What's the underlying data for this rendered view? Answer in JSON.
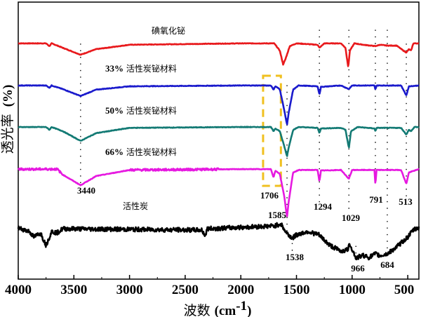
{
  "chart_data": {
    "type": "line",
    "xlabel": "波数 (cm-1)",
    "xlabel_main": "波数",
    "xlabel_unit": "(cm",
    "xlabel_sup": "-1",
    "xlabel_close": ")",
    "ylabel": "透光率 (%)",
    "ylabel_main": "透光率",
    "ylabel_unit": "(%)",
    "xlim": [
      4000,
      400
    ],
    "x_reversed": true,
    "x_ticks": [
      4000,
      3500,
      3000,
      2500,
      2000,
      1500,
      1000,
      500
    ],
    "y_ticks": [],
    "ylim": [
      0,
      100
    ],
    "grid": false,
    "series": [
      {
        "name": "碘氧化铋",
        "label_parts": [
          "",
          "碘氧化铋"
        ],
        "color": "#e8191c",
        "points": [
          [
            4000,
            85.1
          ],
          [
            3750,
            85.1
          ],
          [
            3720,
            84.1
          ],
          [
            3700,
            85.1
          ],
          [
            3600,
            83.5
          ],
          [
            3440,
            81.0
          ],
          [
            3300,
            83.0
          ],
          [
            3000,
            84.6
          ],
          [
            2000,
            85.1
          ],
          [
            1700,
            85.1
          ],
          [
            1650,
            82.5
          ],
          [
            1620,
            77.5
          ],
          [
            1600,
            79.3
          ],
          [
            1560,
            84.1
          ],
          [
            1500,
            85.1
          ],
          [
            1310,
            84.6
          ],
          [
            1294,
            83.5
          ],
          [
            1250,
            85.1
          ],
          [
            1100,
            85.1
          ],
          [
            1060,
            83.5
          ],
          [
            1035,
            76.5
          ],
          [
            1020,
            82.5
          ],
          [
            980,
            85.1
          ],
          [
            900,
            84.6
          ],
          [
            791,
            84.1
          ],
          [
            750,
            84.6
          ],
          [
            684,
            84.3
          ],
          [
            600,
            84.3
          ],
          [
            540,
            82.5
          ],
          [
            513,
            81.8
          ],
          [
            490,
            83.0
          ],
          [
            470,
            82.5
          ],
          [
            450,
            85.1
          ],
          [
            400,
            85.1
          ]
        ]
      },
      {
        "name": "33% 活性炭铋材料",
        "label_parts": [
          "33%",
          " 活性炭铋材料"
        ],
        "color": "#1a1acc",
        "points": [
          [
            4000,
            69.9
          ],
          [
            3750,
            69.9
          ],
          [
            3720,
            69.1
          ],
          [
            3700,
            69.9
          ],
          [
            3600,
            68.6
          ],
          [
            3440,
            66.1
          ],
          [
            3300,
            68.4
          ],
          [
            3000,
            69.6
          ],
          [
            2000,
            69.9
          ],
          [
            1730,
            69.9
          ],
          [
            1706,
            68.4
          ],
          [
            1690,
            69.6
          ],
          [
            1650,
            68.6
          ],
          [
            1610,
            61.0
          ],
          [
            1585,
            55.7
          ],
          [
            1570,
            60.0
          ],
          [
            1530,
            68.4
          ],
          [
            1480,
            69.9
          ],
          [
            1310,
            69.6
          ],
          [
            1294,
            66.6
          ],
          [
            1280,
            69.4
          ],
          [
            1100,
            69.9
          ],
          [
            1029,
            68.6
          ],
          [
            1000,
            69.9
          ],
          [
            800,
            69.9
          ],
          [
            791,
            68.4
          ],
          [
            780,
            69.9
          ],
          [
            560,
            69.9
          ],
          [
            513,
            66.3
          ],
          [
            490,
            69.6
          ],
          [
            400,
            69.9
          ]
        ]
      },
      {
        "name": "50% 活性炭铋材料",
        "label_parts": [
          "50%",
          " 活性炭铋材料"
        ],
        "color": "#137a74",
        "points": [
          [
            4000,
            54.9
          ],
          [
            3750,
            54.9
          ],
          [
            3720,
            53.9
          ],
          [
            3700,
            54.9
          ],
          [
            3600,
            53.4
          ],
          [
            3440,
            49.9
          ],
          [
            3300,
            52.7
          ],
          [
            3000,
            54.6
          ],
          [
            2000,
            54.9
          ],
          [
            1730,
            54.9
          ],
          [
            1706,
            53.4
          ],
          [
            1690,
            54.4
          ],
          [
            1650,
            53.4
          ],
          [
            1610,
            48.0
          ],
          [
            1585,
            44.3
          ],
          [
            1570,
            47.5
          ],
          [
            1530,
            53.9
          ],
          [
            1480,
            54.9
          ],
          [
            1310,
            54.6
          ],
          [
            1294,
            52.7
          ],
          [
            1280,
            54.4
          ],
          [
            1100,
            54.6
          ],
          [
            1060,
            53.9
          ],
          [
            1029,
            47.3
          ],
          [
            1010,
            53.4
          ],
          [
            950,
            54.9
          ],
          [
            800,
            54.4
          ],
          [
            791,
            53.4
          ],
          [
            780,
            54.6
          ],
          [
            560,
            54.6
          ],
          [
            513,
            52.2
          ],
          [
            490,
            53.9
          ],
          [
            470,
            53.4
          ],
          [
            440,
            54.9
          ],
          [
            400,
            54.9
          ]
        ]
      },
      {
        "name": "66% 活性炭铋材料",
        "label_parts": [
          "66%",
          " 活性炭铋材料"
        ],
        "color": "#e619e0",
        "points": [
          [
            4000,
            39.7
          ],
          [
            3650,
            39.7
          ],
          [
            3600,
            37.7
          ],
          [
            3440,
            33.9
          ],
          [
            3300,
            37.2
          ],
          [
            3000,
            39.4
          ],
          [
            2000,
            39.7
          ],
          [
            1730,
            39.7
          ],
          [
            1706,
            36.7
          ],
          [
            1690,
            39.2
          ],
          [
            1650,
            38.0
          ],
          [
            1610,
            30.0
          ],
          [
            1585,
            22.3
          ],
          [
            1570,
            28.0
          ],
          [
            1530,
            38.5
          ],
          [
            1480,
            39.4
          ],
          [
            1310,
            39.4
          ],
          [
            1294,
            35.2
          ],
          [
            1280,
            39.2
          ],
          [
            1100,
            39.4
          ],
          [
            1029,
            36.2
          ],
          [
            1000,
            39.4
          ],
          [
            800,
            39.4
          ],
          [
            791,
            34.2
          ],
          [
            780,
            39.4
          ],
          [
            560,
            39.4
          ],
          [
            513,
            34.4
          ],
          [
            490,
            38.5
          ],
          [
            400,
            39.7
          ]
        ]
      },
      {
        "name": "活性炭",
        "label_parts": [
          "",
          "活性炭"
        ],
        "color": "#000000",
        "points": [
          [
            4000,
            18.5
          ],
          [
            3900,
            17.2
          ],
          [
            3860,
            15.2
          ],
          [
            3800,
            16.7
          ],
          [
            3750,
            12.2
          ],
          [
            3700,
            17.2
          ],
          [
            3650,
            16.7
          ],
          [
            3600,
            18.2
          ],
          [
            2350,
            17.7
          ],
          [
            2320,
            15.7
          ],
          [
            2300,
            18.2
          ],
          [
            1700,
            19.2
          ],
          [
            1640,
            20.0
          ],
          [
            1600,
            17.2
          ],
          [
            1538,
            14.7
          ],
          [
            1500,
            16.0
          ],
          [
            1400,
            17.2
          ],
          [
            1300,
            16.0
          ],
          [
            1200,
            12.2
          ],
          [
            1100,
            10.1
          ],
          [
            1040,
            10.6
          ],
          [
            1020,
            12.7
          ],
          [
            966,
            7.6
          ],
          [
            900,
            8.6
          ],
          [
            850,
            7.8
          ],
          [
            791,
            9.1
          ],
          [
            750,
            8.4
          ],
          [
            684,
            9.1
          ],
          [
            600,
            11.6
          ],
          [
            500,
            15.2
          ],
          [
            450,
            17.7
          ],
          [
            400,
            18.7
          ]
        ]
      }
    ],
    "annotations": {
      "peak_labels": [
        "3440",
        "1706",
        "1585",
        "1294",
        "1029",
        "791",
        "513",
        "1538",
        "966",
        "684"
      ],
      "highlight_box": {
        "x_range": [
          1800,
          1640
        ],
        "color": "#f0c020"
      }
    }
  }
}
